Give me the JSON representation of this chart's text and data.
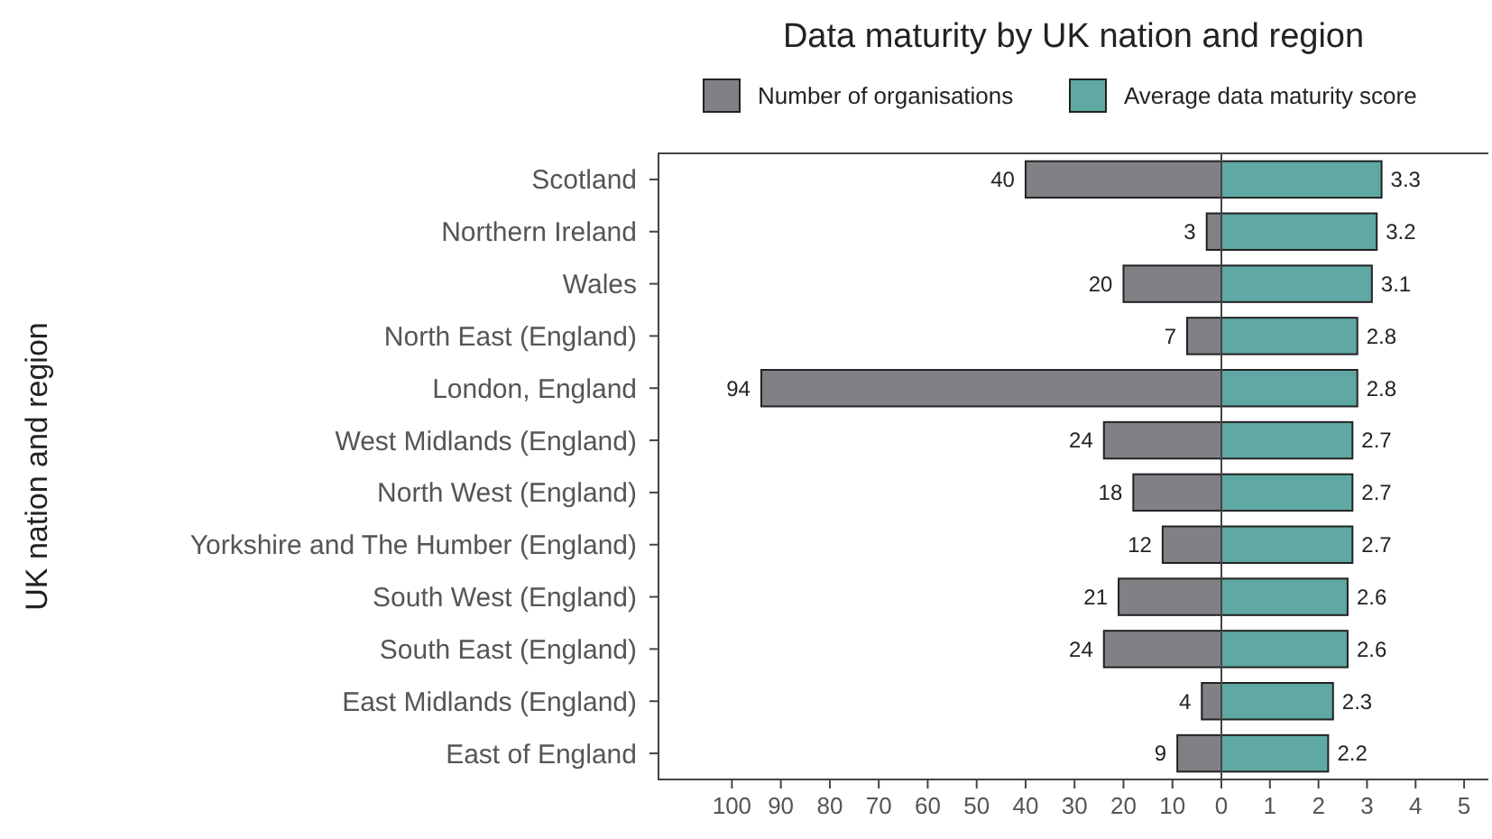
{
  "chart_data": [
    {
      "type": "bar",
      "orientation": "horizontal",
      "title": "Data maturity by UK nation and region",
      "ylabel": "UK nation and region",
      "categories": [
        "Scotland",
        "Northern Ireland",
        "Wales",
        "North East (England)",
        "London, England",
        "West Midlands (England)",
        "North West (England)",
        "Yorkshire and The Humber (England)",
        "South West (England)",
        "South East (England)",
        "East Midlands (England)",
        "East of England"
      ],
      "series": [
        {
          "name": "Number of organisations",
          "color": "#808085",
          "values": [
            40,
            3,
            20,
            7,
            94,
            24,
            18,
            12,
            21,
            24,
            4,
            9
          ]
        }
      ],
      "xlim": [
        115,
        0
      ],
      "xticks": [
        100,
        90,
        80,
        70,
        60,
        50,
        40,
        30,
        20,
        10,
        0
      ],
      "data_labels": true,
      "legend": "top",
      "grid": false
    },
    {
      "type": "bar",
      "orientation": "horizontal",
      "categories": [
        null,
        null,
        null,
        null,
        null,
        null,
        null,
        null,
        null,
        null,
        null,
        null
      ],
      "series": [
        {
          "name": "Average data maturity score",
          "color": "#5fa8a3",
          "values": [
            3.3,
            3.2,
            3.1,
            2.8,
            2.8,
            2.7,
            2.7,
            2.7,
            2.6,
            2.6,
            2.3,
            2.2
          ]
        }
      ],
      "xlim": [
        0,
        5.5
      ],
      "xticks": [
        1,
        2,
        3,
        4,
        5
      ],
      "data_labels": true,
      "legend": "top",
      "grid": false,
      "tick_labels": "x"
    }
  ]
}
